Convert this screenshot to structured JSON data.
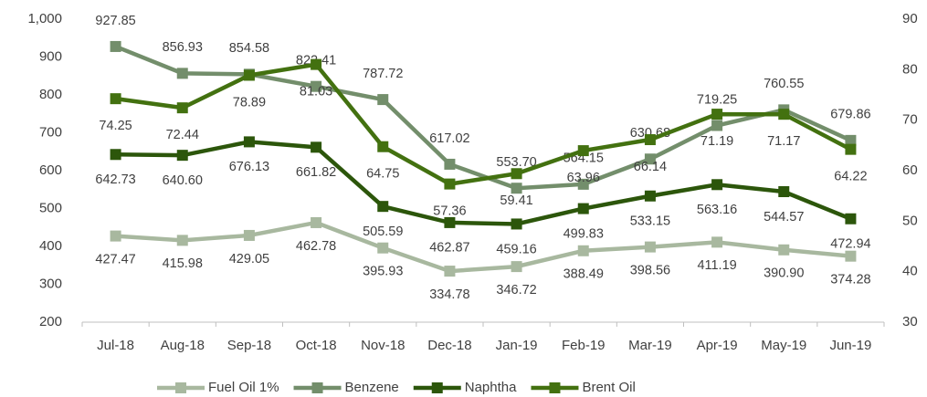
{
  "chart_data": {
    "type": "line",
    "categories": [
      "Jul-18",
      "Aug-18",
      "Sep-18",
      "Oct-18",
      "Nov-18",
      "Dec-18",
      "Jan-19",
      "Feb-19",
      "Mar-19",
      "Apr-19",
      "May-19",
      "Jun-19"
    ],
    "series": [
      {
        "name": "Fuel Oil 1%",
        "color": "#a8b89f",
        "values": [
          427.47,
          415.98,
          429.05,
          462.78,
          395.93,
          334.78,
          346.72,
          388.49,
          398.56,
          411.19,
          390.9,
          374.28
        ],
        "value_labels": [
          "427.47",
          "415.98",
          "429.05",
          "462.78",
          "395.93",
          "334.78",
          "346.72",
          "388.49",
          "398.56",
          "411.19",
          "390.90",
          "374.28"
        ]
      },
      {
        "name": "Benzene",
        "color": "#738e6b",
        "values": [
          927.85,
          856.93,
          854.58,
          822.41,
          787.72,
          617.02,
          553.7,
          564.15,
          630.68,
          719.25,
          760.55,
          679.86
        ],
        "value_labels": [
          "927.85",
          "856.93",
          "854.58",
          "822.41",
          "787.72",
          "617.02",
          "553.70",
          "564.15",
          "630.68",
          "719.25",
          "760.55",
          "679.86"
        ]
      },
      {
        "name": "Naphtha",
        "color": "#2c560b",
        "values": [
          642.73,
          640.6,
          676.13,
          661.82,
          505.59,
          462.87,
          459.16,
          499.83,
          533.15,
          563.16,
          544.57,
          472.94
        ],
        "value_labels": [
          "642.73",
          "640.60",
          "676.13",
          "661.82",
          "505.59",
          "462.87",
          "459.16",
          "499.83",
          "533.15",
          "563.16",
          "544.57",
          "472.94"
        ]
      },
      {
        "name": "Brent Oil",
        "color": "#437110",
        "axis": "y2",
        "values": [
          74.25,
          72.44,
          78.89,
          81.03,
          64.75,
          57.36,
          59.41,
          63.96,
          66.14,
          71.19,
          71.17,
          64.22
        ],
        "value_labels": [
          "74.25",
          "72.44",
          "78.89",
          "81.03",
          "64.75",
          "57.36",
          "59.41",
          "63.96",
          "66.14",
          "71.19",
          "71.17",
          "64.22"
        ]
      }
    ],
    "ylim": [
      200,
      1000
    ],
    "yticks": [
      200,
      300,
      400,
      500,
      600,
      700,
      800,
      900,
      {
        "value": 1000,
        "label": "1,000"
      }
    ],
    "y2lim": [
      30,
      90
    ],
    "y2ticks": [
      30,
      40,
      50,
      60,
      70,
      80,
      90
    ],
    "legend": "bottom"
  }
}
